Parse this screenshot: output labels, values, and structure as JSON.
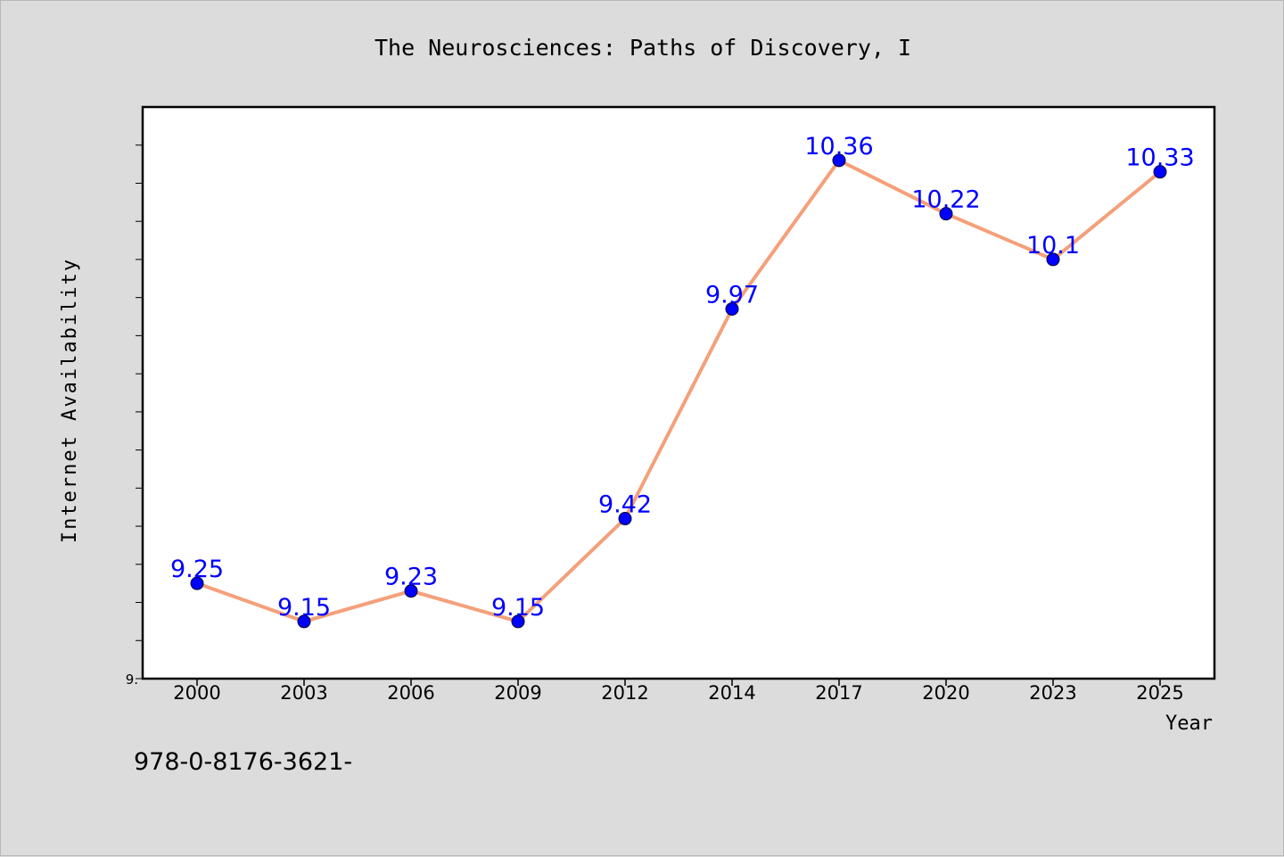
{
  "chart_data": {
    "type": "line",
    "title": "The Neurosciences: Paths of Discovery, I",
    "xlabel": "Year",
    "ylabel": "Internet Availability",
    "categories": [
      "2000",
      "2003",
      "2006",
      "2009",
      "2012",
      "2014",
      "2017",
      "2020",
      "2023",
      "2025"
    ],
    "series": [
      {
        "values": [
          9.25,
          9.15,
          9.23,
          9.15,
          9.42,
          9.97,
          10.36,
          10.22,
          10.1,
          10.33
        ],
        "labels": [
          "9.25",
          "9.15",
          "9.23",
          "9.15",
          "9.42",
          "9.97",
          "10.36",
          "10.22",
          "10.1",
          "10.33"
        ],
        "line_color": "#f4a07a",
        "marker_color": "#0000ff",
        "label_color": "#0000ff"
      }
    ],
    "ylim": [
      9.0,
      10.5
    ],
    "y_tick_label": "9.",
    "grid": false,
    "legend": "none"
  },
  "annotation": "978-0-8176-3621-",
  "colors": {
    "background": "#dcdcdc",
    "plot_background": "#ffffff",
    "axis": "#000000"
  }
}
